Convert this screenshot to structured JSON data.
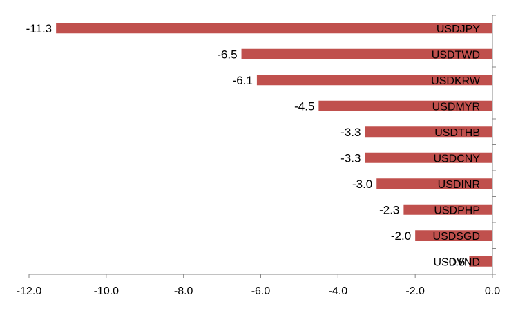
{
  "chart_data": {
    "type": "bar",
    "orientation": "horizontal",
    "categories": [
      "USDJPY",
      "USDTWD",
      "USDKRW",
      "USDMYR",
      "USDTHB",
      "USDCNY",
      "USDINR",
      "USDPHP",
      "USDSGD",
      "USDVND"
    ],
    "values": [
      -11.3,
      -6.5,
      -6.1,
      -4.5,
      -3.3,
      -3.3,
      -3.0,
      -2.3,
      -2.0,
      -0.6
    ],
    "value_labels": [
      "-11.3",
      "-6.5",
      "-6.1",
      "-4.5",
      "-3.3",
      "-3.3",
      "-3.0",
      "-2.3",
      "-2.0",
      "-0.6"
    ],
    "xlim": [
      -12.0,
      0.0
    ],
    "x_ticks": [
      -12.0,
      -10.0,
      -8.0,
      -6.0,
      -4.0,
      -2.0,
      0.0
    ],
    "x_tick_labels": [
      "-12.0",
      "-10.0",
      "-8.0",
      "-6.0",
      "-4.0",
      "-2.0",
      "0.0"
    ],
    "title": "",
    "xlabel": "",
    "ylabel": "",
    "grid": false,
    "legend": "none",
    "bar_color": "#c0504d",
    "axis_color": "#868686"
  }
}
